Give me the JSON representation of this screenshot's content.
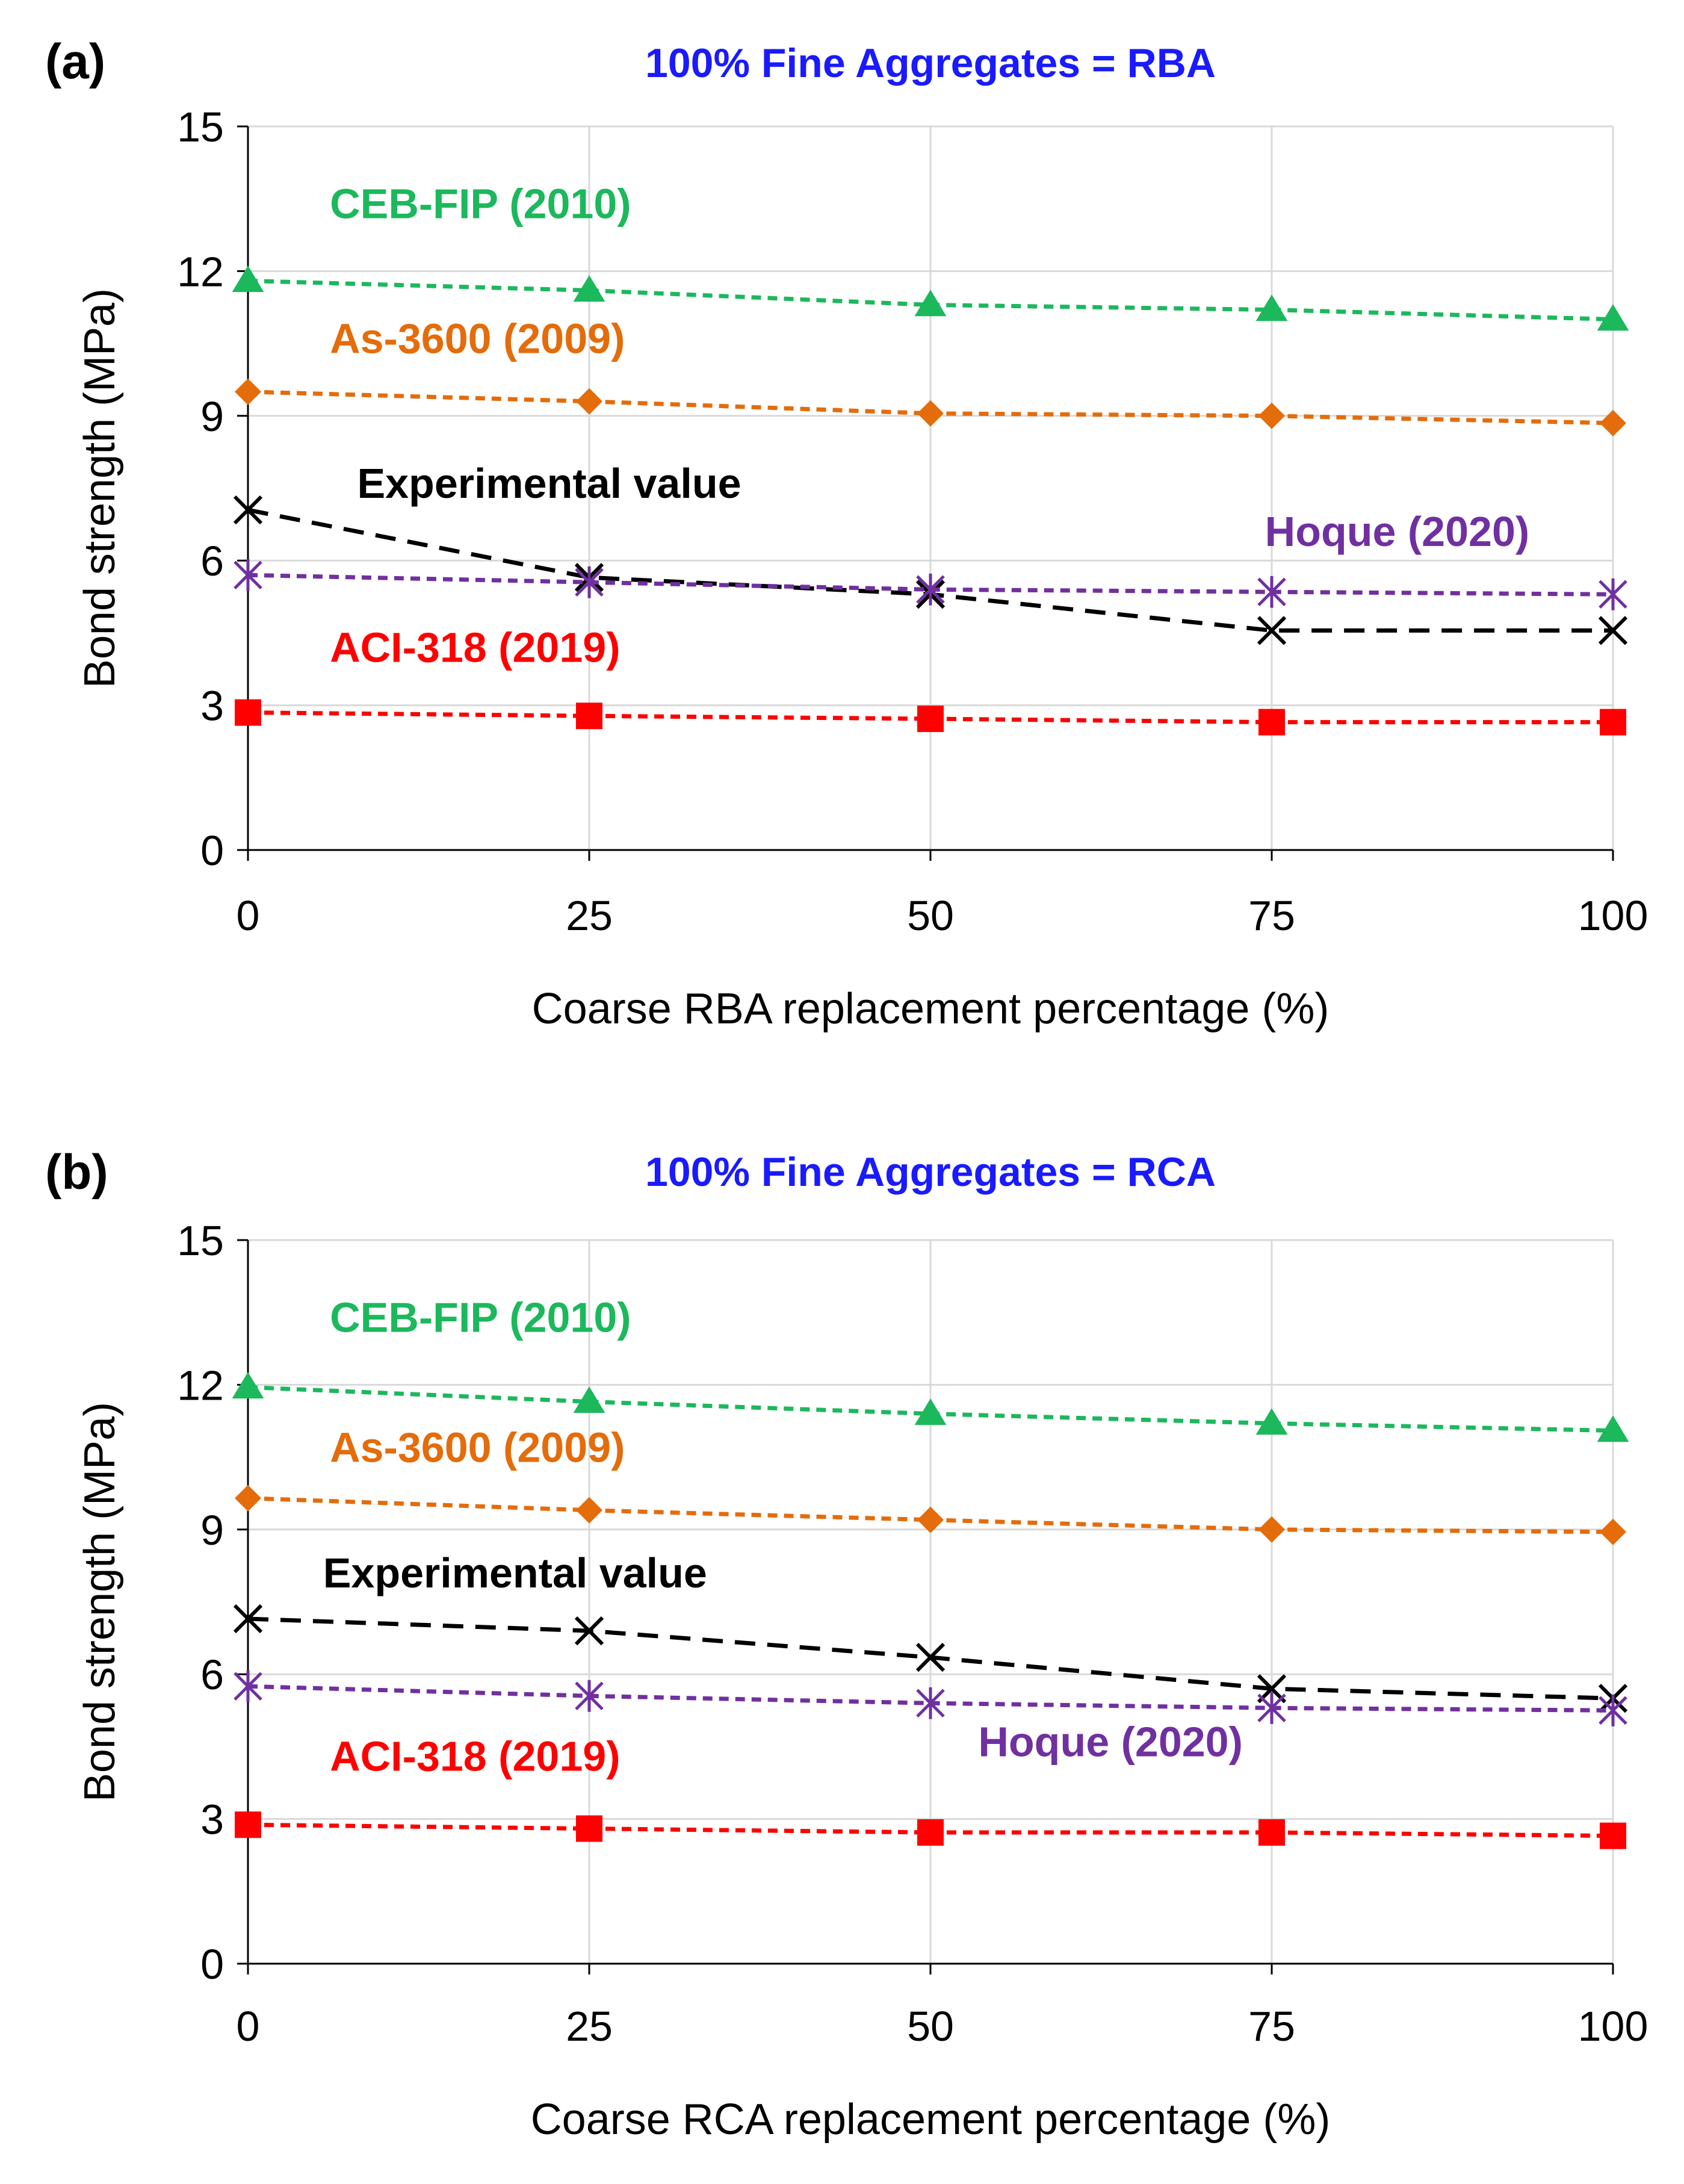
{
  "chart_data": [
    {
      "type": "line",
      "panel_label": "(a)",
      "title": "100% Fine Aggregates = RBA",
      "title_color": "#1a1aff",
      "xlabel": "Coarse RBA replacement percentage (%)",
      "ylabel": "Bond strength (MPa)",
      "x": [
        0,
        25,
        50,
        75,
        100
      ],
      "x_ticks": [
        "0",
        "25",
        "50",
        "75",
        "100"
      ],
      "y_ticks": [
        "0",
        "3",
        "6",
        "9",
        "12",
        "15"
      ],
      "xlim": [
        0,
        100
      ],
      "ylim": [
        0,
        15
      ],
      "grid": true,
      "series": [
        {
          "name": "CEB-FIP (2010)",
          "label_text": "CEB-FIP (2010)",
          "color": "#1cb85c",
          "marker": "triangle",
          "dash": "short",
          "values": [
            11.8,
            11.6,
            11.3,
            11.2,
            11.0
          ],
          "label_anchor": [
            6,
            13.1
          ]
        },
        {
          "name": "As-3600 (2009)",
          "label_text": "As-3600 (2009)",
          "color": "#e46c0a",
          "marker": "diamond",
          "dash": "short",
          "values": [
            9.5,
            9.3,
            9.05,
            9.0,
            8.85
          ],
          "label_anchor": [
            6,
            10.3
          ]
        },
        {
          "name": "Experimental value",
          "label_text": "Experimental  value",
          "color": "#000000",
          "marker": "x",
          "dash": "long",
          "values": [
            7.05,
            5.65,
            5.3,
            4.55,
            4.55
          ],
          "label_anchor": [
            8,
            7.3
          ]
        },
        {
          "name": "Hoque (2020)",
          "label_text": "Hoque (2020)",
          "color": "#7030a0",
          "marker": "asterisk",
          "dash": "short",
          "values": [
            5.7,
            5.55,
            5.4,
            5.35,
            5.3
          ],
          "label_anchor": [
            74.5,
            6.3
          ]
        },
        {
          "name": "ACI-318 (2019)",
          "label_text": "ACI-318 (2019)",
          "color": "#ff0000",
          "marker": "square",
          "dash": "short",
          "values": [
            2.85,
            2.78,
            2.72,
            2.65,
            2.65
          ],
          "label_anchor": [
            6,
            3.9
          ]
        }
      ]
    },
    {
      "type": "line",
      "panel_label": "(b)",
      "title": "100% Fine Aggregates = RCA",
      "title_color": "#1a1aff",
      "xlabel": "Coarse RCA replacement percentage (%)",
      "ylabel": "Bond strength (MPa)",
      "x": [
        0,
        25,
        50,
        75,
        100
      ],
      "x_ticks": [
        "0",
        "25",
        "50",
        "75",
        "100"
      ],
      "y_ticks": [
        "0",
        "3",
        "6",
        "9",
        "12",
        "15"
      ],
      "xlim": [
        0,
        100
      ],
      "ylim": [
        0,
        15
      ],
      "grid": true,
      "series": [
        {
          "name": "CEB-FIP (2010)",
          "label_text": "CEB-FIP (2010)",
          "color": "#1cb85c",
          "marker": "triangle",
          "dash": "short",
          "values": [
            11.95,
            11.65,
            11.4,
            11.2,
            11.05
          ],
          "label_anchor": [
            6,
            13.1
          ]
        },
        {
          "name": "As-3600 (2009)",
          "label_text": "As-3600 (2009)",
          "color": "#e46c0a",
          "marker": "diamond",
          "dash": "short",
          "values": [
            9.65,
            9.4,
            9.2,
            9.0,
            8.95
          ],
          "label_anchor": [
            6,
            10.4
          ]
        },
        {
          "name": "Experimental value",
          "label_text": "Experimental  value",
          "color": "#000000",
          "marker": "x",
          "dash": "long",
          "values": [
            7.15,
            6.9,
            6.35,
            5.7,
            5.5
          ],
          "label_anchor": [
            5.5,
            7.8
          ]
        },
        {
          "name": "Hoque (2020)",
          "label_text": "Hoque (2020)",
          "color": "#7030a0",
          "marker": "asterisk",
          "dash": "short",
          "values": [
            5.75,
            5.55,
            5.4,
            5.3,
            5.25
          ],
          "label_anchor": [
            53.5,
            4.3
          ]
        },
        {
          "name": "ACI-318 (2019)",
          "label_text": "ACI-318 (2019)",
          "color": "#ff0000",
          "marker": "square",
          "dash": "short",
          "values": [
            2.88,
            2.8,
            2.72,
            2.72,
            2.65
          ],
          "label_anchor": [
            6,
            4.0
          ]
        }
      ]
    }
  ]
}
